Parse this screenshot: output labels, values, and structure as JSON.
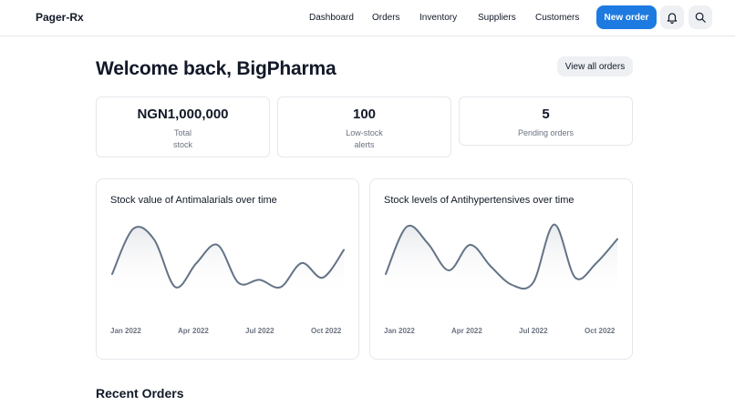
{
  "header": {
    "brand": "Pager-Rx",
    "nav": [
      "Dashboard",
      "Orders",
      "Inventory",
      "Suppliers",
      "Customers"
    ],
    "new_order": "New order",
    "icons": {
      "notifications": "bell-icon",
      "search": "search-icon"
    },
    "accent": "#1d7ae0"
  },
  "page": {
    "title": "Welcome back, BigPharma",
    "view_all": "View all orders"
  },
  "stats": [
    {
      "value": "NGN1,000,000",
      "label_line1": "Total",
      "label_line2": "stock"
    },
    {
      "value": "100",
      "label_line1": "Low-stock",
      "label_line2": "alerts"
    },
    {
      "value": "5",
      "label_line1": "Pending orders",
      "label_line2": ""
    }
  ],
  "charts": [
    {
      "title": "Stock value of Antimalarials over time",
      "xticks": [
        "Jan 2022",
        "Apr 2022",
        "Jul 2022",
        "Oct 2022"
      ]
    },
    {
      "title": "Stock levels of Antihypertensives over time",
      "xticks": [
        "Jan 2022",
        "Apr 2022",
        "Jul 2022",
        "Oct 2022"
      ]
    }
  ],
  "chart_data": [
    {
      "type": "line",
      "title": "Stock value of Antimalarials over time",
      "x": [
        "Jan 2022",
        "Feb 2022",
        "Mar 2022",
        "Apr 2022",
        "May 2022",
        "Jun 2022",
        "Jul 2022",
        "Aug 2022",
        "Sep 2022",
        "Oct 2022",
        "Nov 2022",
        "Dec 2022"
      ],
      "y": [
        0.3,
        0.92,
        0.77,
        0.12,
        0.45,
        0.7,
        0.18,
        0.22,
        0.12,
        0.45,
        0.25,
        0.63
      ],
      "ylim": [
        0,
        1
      ],
      "grid": false,
      "line_color": "#637385"
    },
    {
      "type": "line",
      "title": "Stock levels of Antihypertensives over time",
      "x": [
        "Jan 2022",
        "Feb 2022",
        "Mar 2022",
        "Apr 2022",
        "May 2022",
        "Jun 2022",
        "Jul 2022",
        "Aug 2022",
        "Sep 2022",
        "Oct 2022",
        "Nov 2022",
        "Dec 2022"
      ],
      "y": [
        0.3,
        0.95,
        0.72,
        0.35,
        0.7,
        0.4,
        0.15,
        0.18,
        0.98,
        0.25,
        0.45,
        0.78
      ],
      "ylim": [
        0,
        1
      ],
      "grid": false,
      "line_color": "#637385"
    }
  ],
  "recent_orders": {
    "title": "Recent Orders"
  }
}
